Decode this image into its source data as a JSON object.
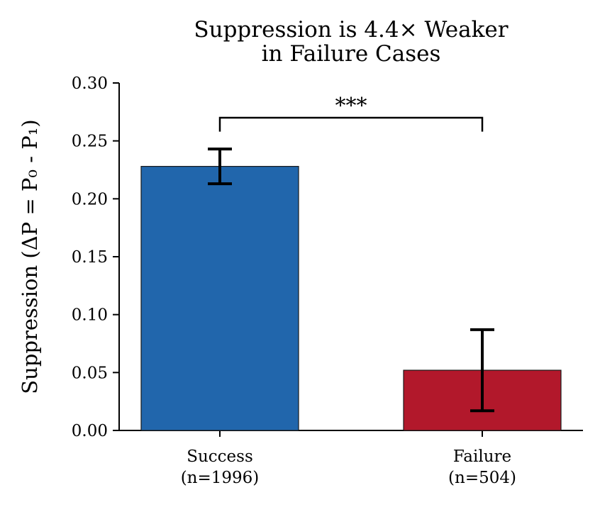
{
  "chart_data": {
    "type": "bar",
    "title": "Suppression is 4.4× Weaker\nin Failure Cases",
    "ylabel": "Suppression (ΔP = P₀ - P₁)",
    "xlabel": "",
    "ylim": [
      0,
      0.3
    ],
    "yticks": [
      0.0,
      0.05,
      0.1,
      0.15,
      0.2,
      0.25,
      0.3
    ],
    "ytick_labels": [
      "0.00",
      "0.05",
      "0.10",
      "0.15",
      "0.20",
      "0.25",
      "0.30"
    ],
    "categories": [
      "Success\n(n=1996)",
      "Failure\n(n=504)"
    ],
    "values": [
      0.228,
      0.052
    ],
    "errors": [
      0.015,
      0.035
    ],
    "colors": [
      "#2166ac",
      "#b2182b"
    ],
    "significance": {
      "label": "***",
      "y": 0.27,
      "drop": 0.012
    },
    "grid": false,
    "legend": "none"
  }
}
